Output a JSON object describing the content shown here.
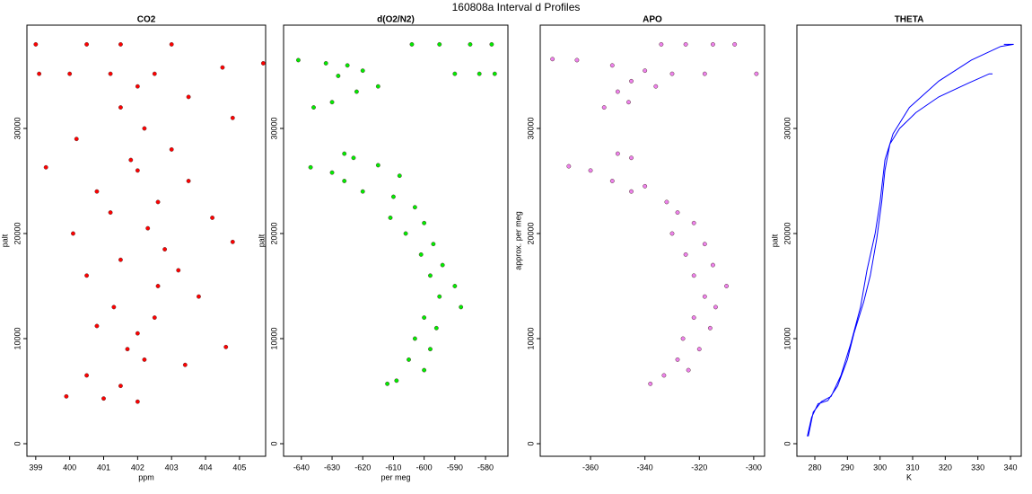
{
  "title": "160808a   Interval d Profiles",
  "chart_data": [
    {
      "type": "scatter",
      "title": "CO2",
      "x_label": "ppm",
      "y_label": "palt",
      "color": "#ff0000",
      "x": [
        399.0,
        400.5,
        401.5,
        403.0,
        399.1,
        400.0,
        401.2,
        402.5,
        404.5,
        405.7,
        402,
        403.5,
        401.5,
        404.8,
        402.2,
        400.2,
        403,
        401.8,
        399.3,
        402,
        403.5,
        400.8,
        402.6,
        401.2,
        404.2,
        402.3,
        400.1,
        404.8,
        402.8,
        401.5,
        403.2,
        400.5,
        402.6,
        403.8,
        401.3,
        402.5,
        400.8,
        402,
        404.6,
        401.7,
        402.2,
        403.4,
        400.5,
        401.5,
        399.9,
        401,
        402
      ],
      "y": [
        38000,
        38000,
        38000,
        38000,
        35200,
        35200,
        35200,
        35200,
        35800,
        36200,
        34000,
        33000,
        32000,
        31000,
        30000,
        29000,
        28000,
        27000,
        26300,
        26000,
        25000,
        24000,
        23000,
        22000,
        21500,
        20500,
        20000,
        19200,
        18500,
        17500,
        16500,
        16000,
        15000,
        14000,
        13000,
        12000,
        11200,
        10500,
        9200,
        9000,
        8000,
        7500,
        6500,
        5500,
        4500,
        4300,
        4000
      ],
      "xlim": [
        398.74,
        405.77
      ],
      "ylim": [
        -1197,
        39829
      ],
      "xticks": [
        399,
        400,
        401,
        402,
        403,
        404,
        405
      ],
      "yticks": [
        0,
        10000,
        20000,
        30000
      ]
    },
    {
      "type": "scatter",
      "title": "d(O2/N2)",
      "x_label": "per meg",
      "y_label": "palt",
      "color": "#00ee00",
      "x": [
        -604,
        -595,
        -585,
        -578,
        -590,
        -582,
        -577,
        -641,
        -632,
        -625,
        -620,
        -628,
        -615,
        -622,
        -630,
        -636,
        -626,
        -623,
        -615,
        -637,
        -630,
        -608,
        -626,
        -620,
        -610,
        -603,
        -611,
        -600,
        -606,
        -597,
        -601,
        -594,
        -598,
        -590,
        -595,
        -588,
        -600,
        -596,
        -603,
        -598,
        -605,
        -600,
        -609,
        -612
      ],
      "y": [
        38000,
        38000,
        38000,
        38000,
        35200,
        35200,
        35200,
        36500,
        36200,
        36000,
        35500,
        35000,
        34000,
        33500,
        32500,
        32000,
        27600,
        27200,
        26500,
        26300,
        25800,
        25500,
        25000,
        24000,
        23500,
        22500,
        21500,
        21000,
        20000,
        19000,
        18000,
        17000,
        16000,
        15000,
        14000,
        13000,
        12000,
        11000,
        10000,
        9000,
        8000,
        7000,
        6000,
        5700
      ],
      "xlim": [
        -645.8,
        -572.7
      ],
      "ylim": [
        -1197,
        39829
      ],
      "xticks": [
        -640,
        -630,
        -620,
        -610,
        -600,
        -590,
        -580
      ],
      "yticks": [
        0,
        10000,
        20000,
        30000
      ]
    },
    {
      "type": "scatter",
      "title": "APO",
      "y_label": "approx. per meg",
      "color": "#ee82ee",
      "x": [
        -334,
        -325,
        -315,
        -307,
        -330,
        -318,
        -299,
        -374,
        -365,
        -352,
        -340,
        -345,
        -336,
        -350,
        -355,
        -346,
        -350,
        -345,
        -368,
        -360,
        -352,
        -340,
        -345,
        -332,
        -328,
        -322,
        -330,
        -318,
        -325,
        -315,
        -322,
        -310,
        -318,
        -314,
        -322,
        -316,
        -326,
        -320,
        -328,
        -324,
        -333,
        -338
      ],
      "y": [
        38000,
        38000,
        38000,
        38000,
        35200,
        35200,
        35200,
        36600,
        36500,
        36000,
        35500,
        34500,
        34000,
        33500,
        32000,
        32500,
        27600,
        27200,
        26400,
        26000,
        25000,
        24500,
        24000,
        23000,
        22000,
        21000,
        20000,
        19000,
        18000,
        17000,
        16000,
        15000,
        14000,
        13000,
        12000,
        11000,
        10000,
        9000,
        8000,
        7000,
        6500,
        5700
      ],
      "xlim": [
        -378.5,
        -296.0
      ],
      "ylim": [
        -1197,
        39829
      ],
      "xticks": [
        -360,
        -340,
        -320,
        -300
      ],
      "yticks": [
        0,
        10000,
        20000,
        30000
      ]
    },
    {
      "type": "line",
      "title": "THETA",
      "x_label": "K",
      "y_label": "palt",
      "color": "#0000ff",
      "x": [
        277.7,
        279,
        281,
        284,
        287,
        290,
        292,
        295,
        297,
        299,
        300.5,
        301.5,
        303,
        306,
        311,
        318,
        327,
        333.5,
        334.5,
        null,
        278,
        279.5,
        282,
        285,
        288,
        291,
        294,
        296,
        298.5,
        300,
        301.5,
        304,
        309,
        318,
        328,
        337,
        341,
        338
      ],
      "y": [
        700,
        2500,
        3800,
        4100,
        5500,
        8000,
        10500,
        13500,
        16000,
        19500,
        23000,
        26000,
        28500,
        30000,
        31500,
        33000,
        34300,
        35200,
        35200,
        null,
        700,
        3000,
        4000,
        4500,
        6500,
        9500,
        13000,
        16500,
        20000,
        23000,
        27000,
        29500,
        32000,
        34500,
        36500,
        37800,
        38000,
        38000
      ],
      "xlim": [
        274.5,
        343.3
      ],
      "ylim": [
        -1197,
        39829
      ],
      "xticks": [
        280,
        290,
        300,
        310,
        320,
        330,
        340
      ],
      "yticks": [
        0,
        10000,
        20000,
        30000
      ]
    }
  ]
}
